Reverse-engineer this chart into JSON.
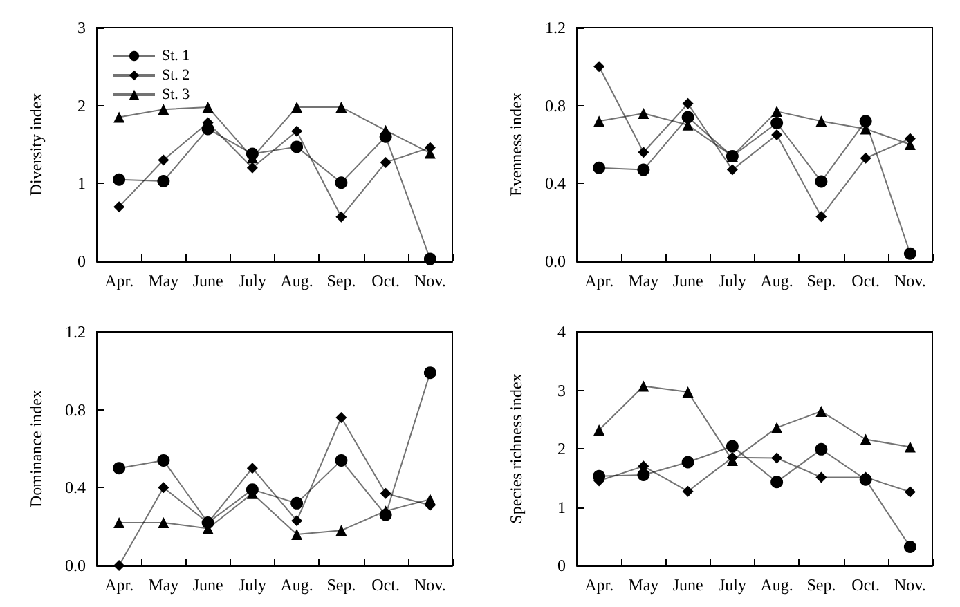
{
  "chart_data": [
    {
      "type": "line",
      "ylabel": "Diversity index",
      "categories": [
        "Apr.",
        "May",
        "June",
        "July",
        "Aug.",
        "Sep.",
        "Oct.",
        "Nov."
      ],
      "ylim": [
        0,
        3
      ],
      "yticks": [
        0,
        1,
        2,
        3
      ],
      "grid": false,
      "legend": "top left",
      "series": [
        {
          "name": "St. 1",
          "color": "#000000",
          "marker": "circle",
          "values": [
            1.05,
            1.03,
            1.7,
            1.38,
            1.47,
            1.01,
            1.6,
            0.03
          ]
        },
        {
          "name": "St. 2",
          "color": "#000000",
          "marker": "diamond",
          "values": [
            0.7,
            1.3,
            1.78,
            1.2,
            1.67,
            0.57,
            1.27,
            1.46
          ]
        },
        {
          "name": "St. 3",
          "color": "#000000",
          "marker": "triangle",
          "values": [
            1.85,
            1.95,
            1.98,
            1.33,
            1.98,
            1.98,
            1.68,
            1.39
          ]
        }
      ]
    },
    {
      "type": "line",
      "ylabel": "Evenness index",
      "categories": [
        "Apr.",
        "May",
        "June",
        "July",
        "Aug.",
        "Sep.",
        "Oct.",
        "Nov."
      ],
      "ylim": [
        0,
        1.2
      ],
      "yticks": [
        {
          "value": 0,
          "label": "0.0"
        },
        0.4,
        0.8,
        1.2
      ],
      "grid": false,
      "series": [
        {
          "color": "#000000",
          "marker": "circle",
          "values": [
            0.48,
            0.47,
            0.74,
            0.54,
            0.71,
            0.41,
            0.72,
            0.04
          ]
        },
        {
          "color": "#000000",
          "marker": "diamond",
          "values": [
            1.0,
            0.56,
            0.81,
            0.47,
            0.65,
            0.23,
            0.53,
            0.63
          ]
        },
        {
          "color": "#000000",
          "marker": "triangle",
          "values": [
            0.72,
            0.76,
            0.7,
            0.54,
            0.77,
            0.72,
            0.68,
            0.6
          ]
        }
      ]
    },
    {
      "type": "line",
      "ylabel": "Dominance index",
      "categories": [
        "Apr.",
        "May",
        "June",
        "July",
        "Aug.",
        "Sep.",
        "Oct.",
        "Nov."
      ],
      "ylim": [
        0,
        1.2
      ],
      "yticks": [
        {
          "value": 0,
          "label": "0.0"
        },
        0.4,
        0.8,
        1.2
      ],
      "grid": false,
      "series": [
        {
          "color": "#000000",
          "marker": "circle",
          "values": [
            0.5,
            0.54,
            0.22,
            0.39,
            0.32,
            0.54,
            0.26,
            0.99
          ]
        },
        {
          "color": "#000000",
          "marker": "diamond",
          "values": [
            0.0,
            0.4,
            0.22,
            0.5,
            0.23,
            0.76,
            0.37,
            0.31
          ]
        },
        {
          "color": "#000000",
          "marker": "triangle",
          "values": [
            0.22,
            0.22,
            0.19,
            0.37,
            0.16,
            0.18,
            0.28,
            0.34
          ]
        }
      ]
    },
    {
      "type": "line",
      "ylabel": "Species richness index",
      "categories": [
        "Apr.",
        "May",
        "June",
        "July",
        "Aug.",
        "Sep.",
        "Oct.",
        "Nov."
      ],
      "ylim": [
        0,
        4
      ],
      "yticks": [
        0,
        1,
        2,
        3,
        4
      ],
      "grid": false,
      "series": [
        {
          "color": "#000000",
          "marker": "circle",
          "values": [
            1.53,
            1.55,
            1.77,
            2.04,
            1.43,
            1.99,
            1.47,
            0.32
          ]
        },
        {
          "color": "#000000",
          "marker": "diamond",
          "values": [
            1.45,
            1.7,
            1.27,
            1.85,
            1.84,
            1.51,
            1.51,
            1.26
          ]
        },
        {
          "color": "#000000",
          "marker": "triangle",
          "values": [
            2.32,
            3.07,
            2.97,
            1.8,
            2.36,
            2.64,
            2.16,
            2.03
          ]
        }
      ]
    }
  ]
}
